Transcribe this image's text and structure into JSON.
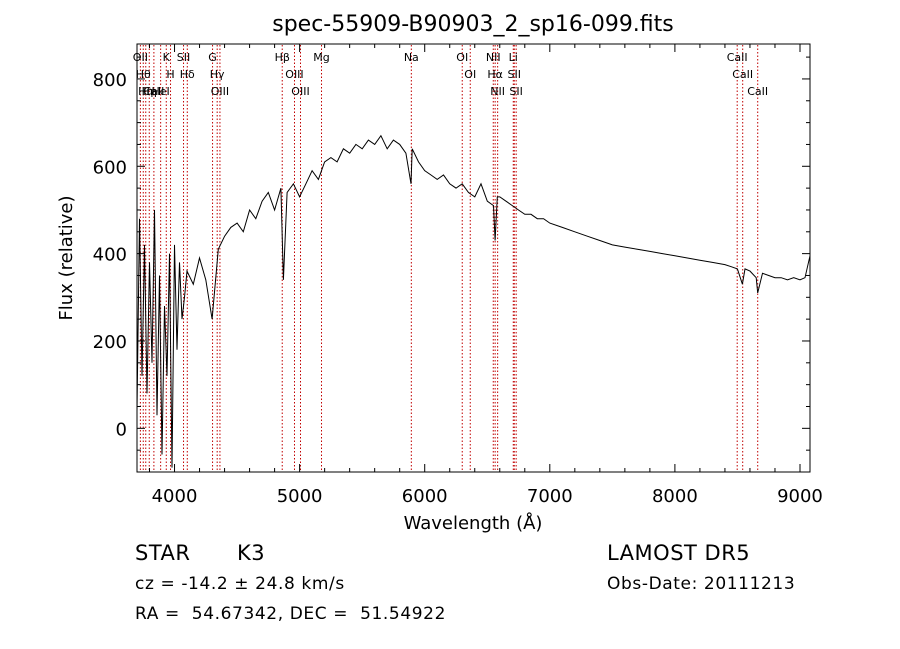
{
  "chart_data": {
    "type": "line",
    "title": "spec-55909-B90903_2_sp16-099.fits",
    "xlabel": "Wavelength (Å)",
    "ylabel": "Flux (relative)",
    "xlim": [
      3700,
      9080
    ],
    "ylim": [
      -100,
      880
    ],
    "xticks": [
      4000,
      5000,
      6000,
      7000,
      8000,
      9000
    ],
    "yticks": [
      0,
      200,
      400,
      600,
      800
    ],
    "grid": false,
    "series": [
      {
        "x": [
          3700,
          3720,
          3740,
          3760,
          3780,
          3800,
          3820,
          3840,
          3860,
          3880,
          3900,
          3920,
          3940,
          3960,
          3980,
          4000,
          4020,
          4040,
          4060,
          4080,
          4100,
          4150,
          4200,
          4250,
          4300,
          4350,
          4400,
          4450,
          4500,
          4550,
          4600,
          4650,
          4700,
          4750,
          4800,
          4850,
          4870,
          4900,
          4950,
          5000,
          5050,
          5100,
          5150,
          5200,
          5250,
          5300,
          5350,
          5400,
          5450,
          5500,
          5550,
          5600,
          5650,
          5700,
          5750,
          5800,
          5850,
          5890,
          5900,
          5950,
          6000,
          6050,
          6100,
          6150,
          6200,
          6250,
          6300,
          6350,
          6400,
          6450,
          6500,
          6550,
          6563,
          6580,
          6600,
          6650,
          6700,
          6750,
          6800,
          6850,
          6900,
          6950,
          7000,
          7100,
          7200,
          7300,
          7400,
          7500,
          7600,
          7700,
          7800,
          7900,
          8000,
          8100,
          8200,
          8300,
          8400,
          8450,
          8500,
          8540,
          8560,
          8600,
          8650,
          8662,
          8700,
          8750,
          8800,
          8850,
          8900,
          8950,
          9000,
          9040,
          9060,
          9080
        ],
        "values": [
          40,
          480,
          120,
          420,
          80,
          380,
          150,
          500,
          30,
          350,
          -60,
          280,
          120,
          400,
          -90,
          420,
          180,
          380,
          250,
          300,
          360,
          330,
          390,
          340,
          250,
          410,
          440,
          460,
          470,
          450,
          500,
          480,
          520,
          540,
          500,
          550,
          340,
          540,
          560,
          530,
          560,
          590,
          570,
          610,
          620,
          610,
          640,
          630,
          650,
          640,
          660,
          650,
          670,
          640,
          660,
          650,
          630,
          560,
          640,
          610,
          590,
          580,
          570,
          580,
          560,
          550,
          560,
          540,
          530,
          560,
          520,
          510,
          430,
          530,
          530,
          520,
          510,
          500,
          490,
          490,
          480,
          480,
          470,
          460,
          450,
          440,
          430,
          420,
          415,
          410,
          405,
          400,
          395,
          390,
          385,
          380,
          375,
          370,
          365,
          330,
          365,
          360,
          345,
          310,
          355,
          350,
          345,
          345,
          340,
          345,
          340,
          345,
          370,
          395
        ]
      }
    ],
    "line_markers": [
      {
        "x": 3727,
        "label": "OII"
      },
      {
        "x": 3750,
        "label": "Hθ"
      },
      {
        "x": 3770,
        "label": "Hη"
      },
      {
        "x": 3798,
        "label": "Hη"
      },
      {
        "x": 3835,
        "label": "CaII"
      },
      {
        "x": 3889,
        "label": "HeI"
      },
      {
        "x": 3934,
        "label": "K"
      },
      {
        "x": 3968,
        "label": "H"
      },
      {
        "x": 4072,
        "label": "SII"
      },
      {
        "x": 4102,
        "label": "Hδ"
      },
      {
        "x": 4304,
        "label": "G"
      },
      {
        "x": 4341,
        "label": "Hγ"
      },
      {
        "x": 4363,
        "label": "OIII"
      },
      {
        "x": 4861,
        "label": "Hβ"
      },
      {
        "x": 4959,
        "label": "OIII"
      },
      {
        "x": 5007,
        "label": "OIII"
      },
      {
        "x": 5175,
        "label": "Mg"
      },
      {
        "x": 5893,
        "label": "Na"
      },
      {
        "x": 6300,
        "label": "OI"
      },
      {
        "x": 6364,
        "label": "OI"
      },
      {
        "x": 6548,
        "label": "NII"
      },
      {
        "x": 6563,
        "label": "Hα"
      },
      {
        "x": 6583,
        "label": "NII"
      },
      {
        "x": 6708,
        "label": "Li"
      },
      {
        "x": 6716,
        "label": "SII"
      },
      {
        "x": 6731,
        "label": "SII"
      },
      {
        "x": 8498,
        "label": "CaII"
      },
      {
        "x": 8542,
        "label": "CaII"
      },
      {
        "x": 8662,
        "label": "CaII"
      }
    ]
  },
  "info": {
    "object_class": "STAR",
    "subclass": "K3",
    "survey": "LAMOST DR5",
    "redshift": "cz = -14.2 ± 24.8 km/s",
    "obs_date": "Obs-Date: 20111213",
    "coords": "RA =  54.67342, DEC =  51.54922"
  }
}
